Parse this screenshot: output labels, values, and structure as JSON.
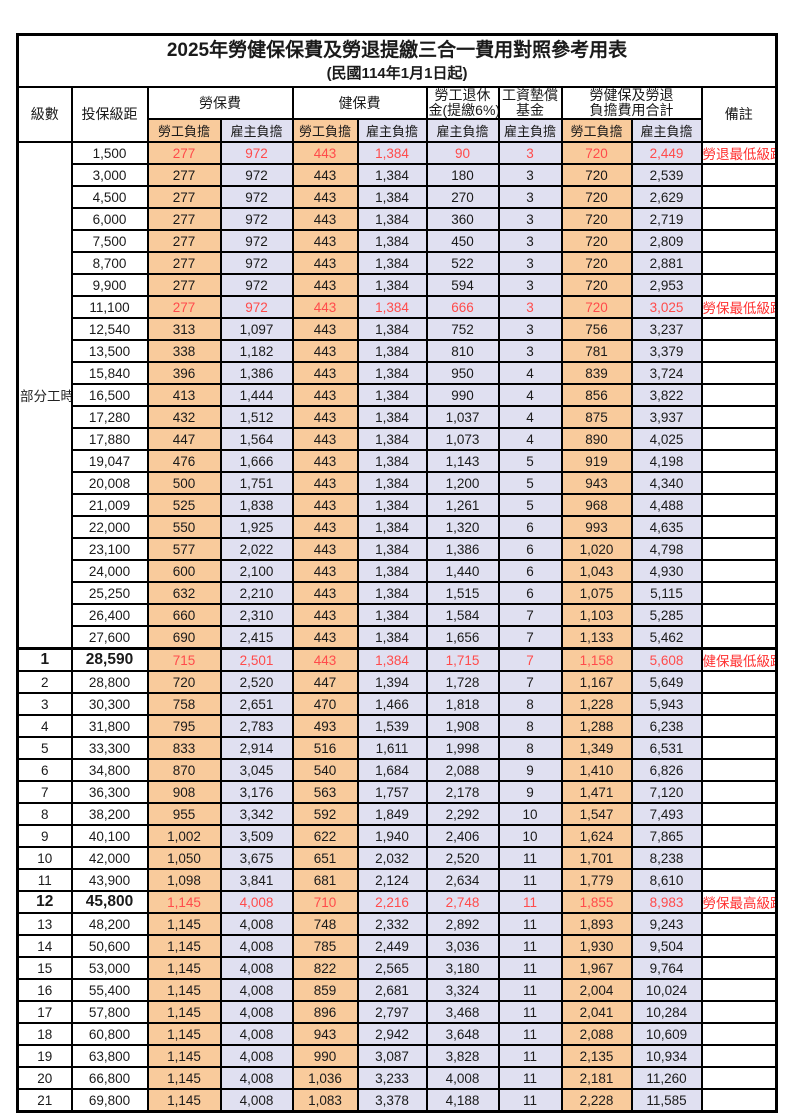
{
  "title": "2025年勞健保保費及勞退提繳三合一費用對照參考用表",
  "subtitle": "(民國114年1月1日起)",
  "colors": {
    "employee_burden_bg": "#f9cb9c",
    "employer_burden_bg": "#e0e0f1",
    "highlight_value_red": "#ff4b4b",
    "remark_red": "#ff2f2f",
    "grid_black": "#000000"
  },
  "header": {
    "level": "級數",
    "bracket": "投保級距",
    "labor_insurance": "勞保費",
    "health_insurance": "健保費",
    "pension_line1": "勞工退休",
    "pension_line2": "金(提繳6%)",
    "wage_fund_line1": "工資墊償",
    "wage_fund_line2": "基金",
    "total_line1": "勞健保及勞退",
    "total_line2": "負擔費用合計",
    "remark": "備註",
    "employee_burden": "勞工負擔",
    "employer_burden": "雇主負擔"
  },
  "part_time_label": "部分工時",
  "part_time_rowspan": 23,
  "rows": [
    {
      "level": null,
      "bracket": "1,500",
      "values": [
        "277",
        "972",
        "443",
        "1,384",
        "90",
        "3",
        "720",
        "2,449"
      ],
      "remark": "勞退最低級距",
      "red": true
    },
    {
      "level": null,
      "bracket": "3,000",
      "values": [
        "277",
        "972",
        "443",
        "1,384",
        "180",
        "3",
        "720",
        "2,539"
      ],
      "remark": "",
      "red": false
    },
    {
      "level": null,
      "bracket": "4,500",
      "values": [
        "277",
        "972",
        "443",
        "1,384",
        "270",
        "3",
        "720",
        "2,629"
      ],
      "remark": "",
      "red": false
    },
    {
      "level": null,
      "bracket": "6,000",
      "values": [
        "277",
        "972",
        "443",
        "1,384",
        "360",
        "3",
        "720",
        "2,719"
      ],
      "remark": "",
      "red": false
    },
    {
      "level": null,
      "bracket": "7,500",
      "values": [
        "277",
        "972",
        "443",
        "1,384",
        "450",
        "3",
        "720",
        "2,809"
      ],
      "remark": "",
      "red": false
    },
    {
      "level": null,
      "bracket": "8,700",
      "values": [
        "277",
        "972",
        "443",
        "1,384",
        "522",
        "3",
        "720",
        "2,881"
      ],
      "remark": "",
      "red": false
    },
    {
      "level": null,
      "bracket": "9,900",
      "values": [
        "277",
        "972",
        "443",
        "1,384",
        "594",
        "3",
        "720",
        "2,953"
      ],
      "remark": "",
      "red": false
    },
    {
      "level": null,
      "bracket": "11,100",
      "values": [
        "277",
        "972",
        "443",
        "1,384",
        "666",
        "3",
        "720",
        "3,025"
      ],
      "remark": "勞保最低級距",
      "red": true
    },
    {
      "level": null,
      "bracket": "12,540",
      "values": [
        "313",
        "1,097",
        "443",
        "1,384",
        "752",
        "3",
        "756",
        "3,237"
      ],
      "remark": "",
      "red": false
    },
    {
      "level": null,
      "bracket": "13,500",
      "values": [
        "338",
        "1,182",
        "443",
        "1,384",
        "810",
        "3",
        "781",
        "3,379"
      ],
      "remark": "",
      "red": false
    },
    {
      "level": null,
      "bracket": "15,840",
      "values": [
        "396",
        "1,386",
        "443",
        "1,384",
        "950",
        "4",
        "839",
        "3,724"
      ],
      "remark": "",
      "red": false
    },
    {
      "level": null,
      "bracket": "16,500",
      "values": [
        "413",
        "1,444",
        "443",
        "1,384",
        "990",
        "4",
        "856",
        "3,822"
      ],
      "remark": "",
      "red": false
    },
    {
      "level": null,
      "bracket": "17,280",
      "values": [
        "432",
        "1,512",
        "443",
        "1,384",
        "1,037",
        "4",
        "875",
        "3,937"
      ],
      "remark": "",
      "red": false
    },
    {
      "level": null,
      "bracket": "17,880",
      "values": [
        "447",
        "1,564",
        "443",
        "1,384",
        "1,073",
        "4",
        "890",
        "4,025"
      ],
      "remark": "",
      "red": false
    },
    {
      "level": null,
      "bracket": "19,047",
      "values": [
        "476",
        "1,666",
        "443",
        "1,384",
        "1,143",
        "5",
        "919",
        "4,198"
      ],
      "remark": "",
      "red": false
    },
    {
      "level": null,
      "bracket": "20,008",
      "values": [
        "500",
        "1,751",
        "443",
        "1,384",
        "1,200",
        "5",
        "943",
        "4,340"
      ],
      "remark": "",
      "red": false
    },
    {
      "level": null,
      "bracket": "21,009",
      "values": [
        "525",
        "1,838",
        "443",
        "1,384",
        "1,261",
        "5",
        "968",
        "4,488"
      ],
      "remark": "",
      "red": false
    },
    {
      "level": null,
      "bracket": "22,000",
      "values": [
        "550",
        "1,925",
        "443",
        "1,384",
        "1,320",
        "6",
        "993",
        "4,635"
      ],
      "remark": "",
      "red": false
    },
    {
      "level": null,
      "bracket": "23,100",
      "values": [
        "577",
        "2,022",
        "443",
        "1,384",
        "1,386",
        "6",
        "1,020",
        "4,798"
      ],
      "remark": "",
      "red": false
    },
    {
      "level": null,
      "bracket": "24,000",
      "values": [
        "600",
        "2,100",
        "443",
        "1,384",
        "1,440",
        "6",
        "1,043",
        "4,930"
      ],
      "remark": "",
      "red": false
    },
    {
      "level": null,
      "bracket": "25,250",
      "values": [
        "632",
        "2,210",
        "443",
        "1,384",
        "1,515",
        "6",
        "1,075",
        "5,115"
      ],
      "remark": "",
      "red": false
    },
    {
      "level": null,
      "bracket": "26,400",
      "values": [
        "660",
        "2,310",
        "443",
        "1,384",
        "1,584",
        "7",
        "1,103",
        "5,285"
      ],
      "remark": "",
      "red": false
    },
    {
      "level": null,
      "bracket": "27,600",
      "values": [
        "690",
        "2,415",
        "443",
        "1,384",
        "1,656",
        "7",
        "1,133",
        "5,462"
      ],
      "remark": "",
      "red": false
    },
    {
      "level": "1",
      "bracket": "28,590",
      "values": [
        "715",
        "2,501",
        "443",
        "1,384",
        "1,715",
        "7",
        "1,158",
        "5,608"
      ],
      "remark": "健保最低級距",
      "red": true
    },
    {
      "level": "2",
      "bracket": "28,800",
      "values": [
        "720",
        "2,520",
        "447",
        "1,394",
        "1,728",
        "7",
        "1,167",
        "5,649"
      ],
      "remark": "",
      "red": false
    },
    {
      "level": "3",
      "bracket": "30,300",
      "values": [
        "758",
        "2,651",
        "470",
        "1,466",
        "1,818",
        "8",
        "1,228",
        "5,943"
      ],
      "remark": "",
      "red": false
    },
    {
      "level": "4",
      "bracket": "31,800",
      "values": [
        "795",
        "2,783",
        "493",
        "1,539",
        "1,908",
        "8",
        "1,288",
        "6,238"
      ],
      "remark": "",
      "red": false
    },
    {
      "level": "5",
      "bracket": "33,300",
      "values": [
        "833",
        "2,914",
        "516",
        "1,611",
        "1,998",
        "8",
        "1,349",
        "6,531"
      ],
      "remark": "",
      "red": false
    },
    {
      "level": "6",
      "bracket": "34,800",
      "values": [
        "870",
        "3,045",
        "540",
        "1,684",
        "2,088",
        "9",
        "1,410",
        "6,826"
      ],
      "remark": "",
      "red": false
    },
    {
      "level": "7",
      "bracket": "36,300",
      "values": [
        "908",
        "3,176",
        "563",
        "1,757",
        "2,178",
        "9",
        "1,471",
        "7,120"
      ],
      "remark": "",
      "red": false
    },
    {
      "level": "8",
      "bracket": "38,200",
      "values": [
        "955",
        "3,342",
        "592",
        "1,849",
        "2,292",
        "10",
        "1,547",
        "7,493"
      ],
      "remark": "",
      "red": false
    },
    {
      "level": "9",
      "bracket": "40,100",
      "values": [
        "1,002",
        "3,509",
        "622",
        "1,940",
        "2,406",
        "10",
        "1,624",
        "7,865"
      ],
      "remark": "",
      "red": false
    },
    {
      "level": "10",
      "bracket": "42,000",
      "values": [
        "1,050",
        "3,675",
        "651",
        "2,032",
        "2,520",
        "11",
        "1,701",
        "8,238"
      ],
      "remark": "",
      "red": false
    },
    {
      "level": "11",
      "bracket": "43,900",
      "values": [
        "1,098",
        "3,841",
        "681",
        "2,124",
        "2,634",
        "11",
        "1,779",
        "8,610"
      ],
      "remark": "",
      "red": false
    },
    {
      "level": "12",
      "bracket": "45,800",
      "values": [
        "1,145",
        "4,008",
        "710",
        "2,216",
        "2,748",
        "11",
        "1,855",
        "8,983"
      ],
      "remark": "勞保最高級距",
      "red": true
    },
    {
      "level": "13",
      "bracket": "48,200",
      "values": [
        "1,145",
        "4,008",
        "748",
        "2,332",
        "2,892",
        "11",
        "1,893",
        "9,243"
      ],
      "remark": "",
      "red": false
    },
    {
      "level": "14",
      "bracket": "50,600",
      "values": [
        "1,145",
        "4,008",
        "785",
        "2,449",
        "3,036",
        "11",
        "1,930",
        "9,504"
      ],
      "remark": "",
      "red": false
    },
    {
      "level": "15",
      "bracket": "53,000",
      "values": [
        "1,145",
        "4,008",
        "822",
        "2,565",
        "3,180",
        "11",
        "1,967",
        "9,764"
      ],
      "remark": "",
      "red": false
    },
    {
      "level": "16",
      "bracket": "55,400",
      "values": [
        "1,145",
        "4,008",
        "859",
        "2,681",
        "3,324",
        "11",
        "2,004",
        "10,024"
      ],
      "remark": "",
      "red": false
    },
    {
      "level": "17",
      "bracket": "57,800",
      "values": [
        "1,145",
        "4,008",
        "896",
        "2,797",
        "3,468",
        "11",
        "2,041",
        "10,284"
      ],
      "remark": "",
      "red": false
    },
    {
      "level": "18",
      "bracket": "60,800",
      "values": [
        "1,145",
        "4,008",
        "943",
        "2,942",
        "3,648",
        "11",
        "2,088",
        "10,609"
      ],
      "remark": "",
      "red": false
    },
    {
      "level": "19",
      "bracket": "63,800",
      "values": [
        "1,145",
        "4,008",
        "990",
        "3,087",
        "3,828",
        "11",
        "2,135",
        "10,934"
      ],
      "remark": "",
      "red": false
    },
    {
      "level": "20",
      "bracket": "66,800",
      "values": [
        "1,145",
        "4,008",
        "1,036",
        "3,233",
        "4,008",
        "11",
        "2,181",
        "11,260"
      ],
      "remark": "",
      "red": false
    },
    {
      "level": "21",
      "bracket": "69,800",
      "values": [
        "1,145",
        "4,008",
        "1,083",
        "3,378",
        "4,188",
        "11",
        "2,228",
        "11,585"
      ],
      "remark": "",
      "red": false
    }
  ]
}
